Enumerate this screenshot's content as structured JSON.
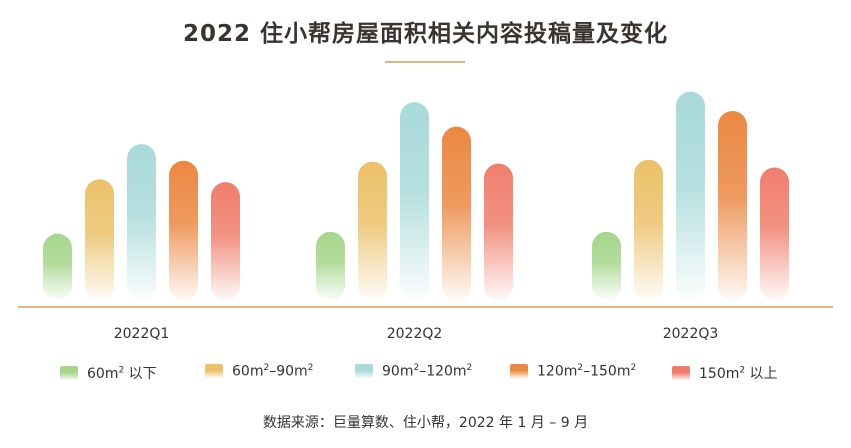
{
  "header": {
    "title": "2022 住小帮房屋面积相关内容投稿量及变化"
  },
  "chart_data": {
    "type": "bar",
    "title": "2022 住小帮房屋面积相关内容投稿量及变化",
    "categories": [
      "2022Q1",
      "2022Q2",
      "2022Q3"
    ],
    "series": [
      {
        "name": "60m² 以下",
        "label_base": "60m",
        "label_rest": " 以下",
        "color": "#a6d68a",
        "values": [
          68,
          70,
          70
        ]
      },
      {
        "name": "60m²–90m²",
        "label_base": "60m",
        "label_rest": "–90m",
        "label_tail_sup": true,
        "color": "#ecc16a",
        "values": [
          124,
          142,
          144
        ]
      },
      {
        "name": "90m²–120m²",
        "label_base": "90m",
        "label_rest": "–120m",
        "label_tail_sup": true,
        "color": "#a8dad9",
        "values": [
          160,
          203,
          214
        ]
      },
      {
        "name": "120m²–150m²",
        "label_base": "120m",
        "label_rest": "–150m",
        "label_tail_sup": true,
        "color": "#eb8842",
        "values": [
          143,
          178,
          194
        ]
      },
      {
        "name": "150m² 以上",
        "label_base": "150m",
        "label_rest": " 以上",
        "color": "#f07e6c",
        "values": [
          121,
          140,
          136
        ]
      }
    ],
    "ylim": [
      0,
      230
    ],
    "xlabel": "",
    "ylabel": "",
    "legend_position": "bottom"
  },
  "footer": {
    "source": "数据来源：巨量算数、住小帮，2022 年 1 月 – 9 月"
  }
}
